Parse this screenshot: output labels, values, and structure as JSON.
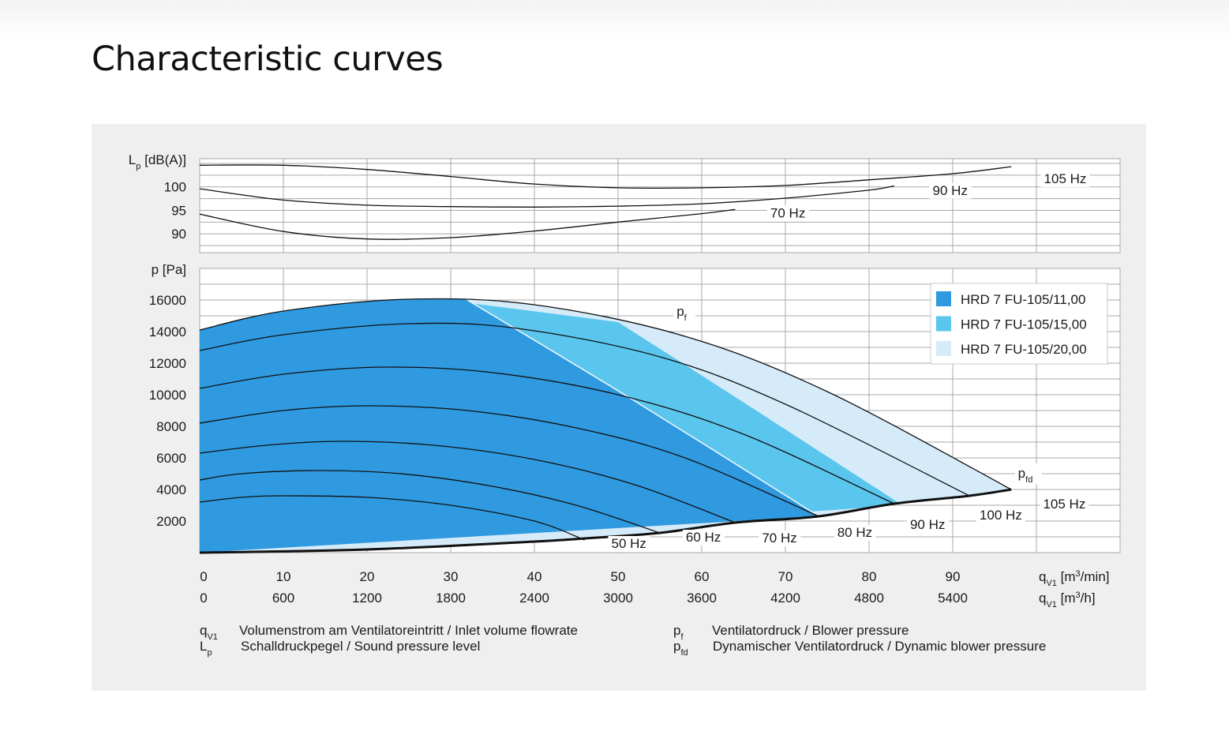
{
  "page": {
    "title": "Characteristic curves"
  },
  "chart_data": {
    "type": "line",
    "title": "Characteristic curves",
    "x_axis": {
      "unit_primary": "m³/min",
      "unit_secondary": "m³/h",
      "ticks_primary": [
        "0",
        "10",
        "20",
        "30",
        "40",
        "50",
        "60",
        "70",
        "80",
        "90"
      ],
      "ticks_secondary": [
        "0",
        "600",
        "1200",
        "1800",
        "2400",
        "3000",
        "3600",
        "4200",
        "4800",
        "5400"
      ],
      "label_primary": {
        "sym": "q",
        "sub": "V1",
        "unit_pre": " [m",
        "sup": "3",
        "unit_post": "/min]"
      },
      "label_secondary": {
        "sym": "q",
        "sub": "V1",
        "unit_pre": " [m",
        "sup": "3",
        "unit_post": "/h]"
      },
      "range": [
        0,
        110
      ]
    },
    "sound_axis": {
      "label": {
        "sym": "L",
        "sub": "p",
        "rest": " [dB(A)]"
      },
      "ticks": [
        "100",
        "95",
        "90"
      ],
      "range": [
        86,
        106
      ]
    },
    "pressure_axis": {
      "label": "p [Pa]",
      "ticks": [
        "16000",
        "14000",
        "12000",
        "10000",
        "8000",
        "6000",
        "4000",
        "2000"
      ],
      "range": [
        0,
        18000
      ]
    },
    "sound_curves": [
      {
        "name": "70 Hz",
        "points": [
          [
            0,
            94.2
          ],
          [
            10,
            90.5
          ],
          [
            20,
            88.9
          ],
          [
            30,
            89.2
          ],
          [
            40,
            90.6
          ],
          [
            50,
            92.5
          ],
          [
            60,
            94.3
          ],
          [
            64,
            95.2
          ]
        ]
      },
      {
        "name": "90 Hz",
        "points": [
          [
            0,
            99.6
          ],
          [
            10,
            97.2
          ],
          [
            20,
            96.1
          ],
          [
            30,
            95.8
          ],
          [
            40,
            95.7
          ],
          [
            50,
            95.9
          ],
          [
            60,
            96.4
          ],
          [
            70,
            97.6
          ],
          [
            80,
            99.3
          ],
          [
            83,
            100.2
          ]
        ]
      },
      {
        "name": "105 Hz",
        "points": [
          [
            0,
            104.6
          ],
          [
            10,
            104.6
          ],
          [
            20,
            103.7
          ],
          [
            30,
            102.2
          ],
          [
            40,
            100.6
          ],
          [
            50,
            99.8
          ],
          [
            60,
            99.8
          ],
          [
            70,
            100.3
          ],
          [
            80,
            101.5
          ],
          [
            90,
            102.8
          ],
          [
            97,
            104.3
          ]
        ]
      }
    ],
    "pressure_curves": [
      {
        "name": "50 Hz",
        "points": [
          [
            0,
            3200
          ],
          [
            5,
            3500
          ],
          [
            10,
            3600
          ],
          [
            20,
            3500
          ],
          [
            30,
            3000
          ],
          [
            40,
            2000
          ],
          [
            46,
            800
          ]
        ]
      },
      {
        "name": "60 Hz",
        "points": [
          [
            0,
            4600
          ],
          [
            5,
            5000
          ],
          [
            14,
            5200
          ],
          [
            24,
            5000
          ],
          [
            35,
            4200
          ],
          [
            45,
            3000
          ],
          [
            55,
            1250
          ]
        ]
      },
      {
        "name": "70 Hz",
        "points": [
          [
            0,
            6300
          ],
          [
            8,
            6800
          ],
          [
            17,
            7050
          ],
          [
            28,
            6800
          ],
          [
            40,
            5900
          ],
          [
            52,
            4300
          ],
          [
            64,
            1900
          ]
        ]
      },
      {
        "name": "80 Hz",
        "points": [
          [
            0,
            8200
          ],
          [
            10,
            9000
          ],
          [
            20,
            9300
          ],
          [
            32,
            9000
          ],
          [
            45,
            7900
          ],
          [
            58,
            6000
          ],
          [
            74,
            2300
          ]
        ]
      },
      {
        "name": "90 Hz",
        "points": [
          [
            0,
            10400
          ],
          [
            10,
            11300
          ],
          [
            22,
            11750
          ],
          [
            35,
            11400
          ],
          [
            50,
            10000
          ],
          [
            65,
            7500
          ],
          [
            83,
            3100
          ]
        ]
      },
      {
        "name": "100 Hz",
        "points": [
          [
            0,
            12800
          ],
          [
            10,
            13800
          ],
          [
            25,
            14500
          ],
          [
            38,
            14200
          ],
          [
            55,
            12400
          ],
          [
            70,
            9400
          ],
          [
            92,
            3600
          ]
        ]
      },
      {
        "name": "105 Hz",
        "points": [
          [
            0,
            14100
          ],
          [
            10,
            15300
          ],
          [
            25,
            16050
          ],
          [
            40,
            15700
          ],
          [
            58,
            13700
          ],
          [
            75,
            10200
          ],
          [
            97,
            4000
          ]
        ]
      }
    ],
    "pfd_curve": {
      "name": "p_fd",
      "points": [
        [
          0,
          0
        ],
        [
          20,
          200
        ],
        [
          40,
          700
        ],
        [
          46,
          900
        ],
        [
          55,
          1250
        ],
        [
          64,
          1900
        ],
        [
          74,
          2300
        ],
        [
          83,
          3100
        ],
        [
          92,
          3600
        ],
        [
          97,
          4000
        ]
      ]
    },
    "boundaries": {
      "b1": [
        [
          32,
          16000
        ],
        [
          52,
          9600
        ],
        [
          74,
          2300
        ]
      ],
      "b2": [
        [
          50,
          14600
        ],
        [
          63,
          10200
        ],
        [
          84,
          3000
        ]
      ]
    },
    "curve_labels": {
      "sound": [
        {
          "text": "70 Hz",
          "x": 68.2,
          "y": 93.5
        },
        {
          "text": "90 Hz",
          "x": 87.6,
          "y": 98.3
        },
        {
          "text": "105 Hz",
          "x": 100.9,
          "y": 100.8
        }
      ],
      "pressure": [
        {
          "text": "50 Hz",
          "x": 49.2,
          "y": 300
        },
        {
          "text": "60 Hz",
          "x": 58.1,
          "y": 700
        },
        {
          "text": "70 Hz",
          "x": 67.2,
          "y": 650
        },
        {
          "text": "80 Hz",
          "x": 76.2,
          "y": 1000
        },
        {
          "text": "90 Hz",
          "x": 84.9,
          "y": 1500
        },
        {
          "text": "100 Hz",
          "x": 93.2,
          "y": 2100
        },
        {
          "text": "105 Hz",
          "x": 100.8,
          "y": 2800
        }
      ],
      "pf": {
        "sym": "p",
        "sub": "f",
        "x": 57.0,
        "y": 15000
      },
      "pfd": {
        "sym": "p",
        "sub": "fd",
        "x": 97.8,
        "y": 4750
      }
    },
    "series": [
      {
        "name": "HRD 7 FU-105/11,00",
        "color": "#2f9ae0"
      },
      {
        "name": "HRD 7 FU-105/15,00",
        "color": "#5ac6ee"
      },
      {
        "name": "HRD 7 FU-105/20,00",
        "color": "#d5ebf9"
      }
    ],
    "legend_position": "top-right",
    "footnotes": [
      {
        "sym": "q",
        "sub": "V1",
        "text": "Volumenstrom am Ventilatoreintritt / Inlet volume flowrate"
      },
      {
        "sym": "L",
        "sub": "p",
        "text": "Schalldruckpegel / Sound pressure level"
      },
      {
        "sym": "p",
        "sub": "f",
        "text": "Ventilatordruck / Blower pressure"
      },
      {
        "sym": "p",
        "sub": "fd",
        "text": "Dynamischer Ventilatordruck / Dynamic blower pressure"
      }
    ]
  }
}
